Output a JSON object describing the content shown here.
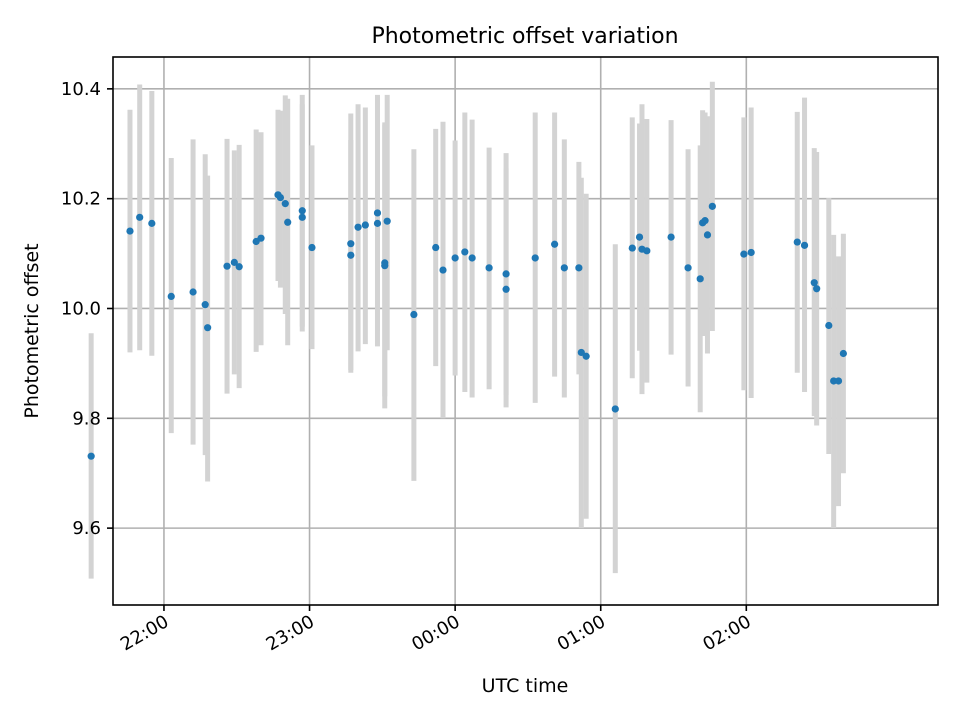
{
  "chart_data": {
    "type": "scatter",
    "title": "Photometric offset variation",
    "xlabel": "UTC time",
    "ylabel": "Photometric offset",
    "grid": true,
    "x_unit": "minutes",
    "xlim": [
      -141,
      199
    ],
    "ylim": [
      9.46,
      10.458
    ],
    "yticks": [
      9.6,
      9.8,
      10.0,
      10.2,
      10.4
    ],
    "ytick_labels": [
      "9.6",
      "9.8",
      "10.0",
      "10.2",
      "10.4"
    ],
    "xticks": [
      -120,
      -60,
      0,
      60,
      120
    ],
    "xtick_labels": [
      "22:00",
      "23:00",
      "00:00",
      "01:00",
      "02:00"
    ],
    "colors": {
      "point": "#1f77b4",
      "errorbar": "#d3d3d3",
      "grid": "#b0b0b0"
    },
    "series": [
      {
        "points": [
          {
            "x": -150,
            "y": 9.731,
            "lo": 9.508,
            "hi": 9.955
          },
          {
            "x": -134,
            "y": 10.141,
            "lo": 9.92,
            "hi": 10.362
          },
          {
            "x": -130,
            "y": 10.166,
            "lo": 9.924,
            "hi": 10.408
          },
          {
            "x": -125,
            "y": 10.155,
            "lo": 9.914,
            "hi": 10.396
          },
          {
            "x": -117,
            "y": 10.022,
            "lo": 9.773,
            "hi": 10.274
          },
          {
            "x": -108,
            "y": 10.03,
            "lo": 9.752,
            "hi": 10.308
          },
          {
            "x": -103,
            "y": 10.007,
            "lo": 9.733,
            "hi": 10.281
          },
          {
            "x": -102,
            "y": 9.965,
            "lo": 9.685,
            "hi": 10.242
          },
          {
            "x": -94,
            "y": 10.077,
            "lo": 9.845,
            "hi": 10.309
          },
          {
            "x": -91,
            "y": 10.084,
            "lo": 9.88,
            "hi": 10.288
          },
          {
            "x": -89,
            "y": 10.076,
            "lo": 9.855,
            "hi": 10.298
          },
          {
            "x": -82,
            "y": 10.122,
            "lo": 9.921,
            "hi": 10.326
          },
          {
            "x": -80,
            "y": 10.128,
            "lo": 9.933,
            "hi": 10.321
          },
          {
            "x": -73,
            "y": 10.207,
            "lo": 10.05,
            "hi": 10.362
          },
          {
            "x": -72,
            "y": 10.202,
            "lo": 10.038,
            "hi": 10.36
          },
          {
            "x": -70,
            "y": 10.191,
            "lo": 9.99,
            "hi": 10.388
          },
          {
            "x": -69,
            "y": 10.157,
            "lo": 9.933,
            "hi": 10.382
          },
          {
            "x": -63,
            "y": 10.178,
            "lo": 9.967,
            "hi": 10.389
          },
          {
            "x": -63,
            "y": 10.166,
            "lo": 9.958,
            "hi": 10.372
          },
          {
            "x": -59,
            "y": 10.111,
            "lo": 9.926,
            "hi": 10.297
          },
          {
            "x": -43,
            "y": 10.097,
            "lo": 9.888,
            "hi": 10.307
          },
          {
            "x": -43,
            "y": 10.118,
            "lo": 9.883,
            "hi": 10.355
          },
          {
            "x": -40,
            "y": 10.148,
            "lo": 9.922,
            "hi": 10.372
          },
          {
            "x": -37,
            "y": 10.152,
            "lo": 9.935,
            "hi": 10.366
          },
          {
            "x": -32,
            "y": 10.155,
            "lo": 9.931,
            "hi": 10.384
          },
          {
            "x": -32,
            "y": 10.174,
            "lo": 9.96,
            "hi": 10.389
          },
          {
            "x": -29,
            "y": 10.083,
            "lo": 9.84,
            "hi": 10.335
          },
          {
            "x": -29,
            "y": 10.078,
            "lo": 9.818,
            "hi": 10.339
          },
          {
            "x": -28,
            "y": 10.159,
            "lo": 9.924,
            "hi": 10.389
          },
          {
            "x": -17,
            "y": 9.989,
            "lo": 9.686,
            "hi": 10.29
          },
          {
            "x": -8,
            "y": 10.111,
            "lo": 9.895,
            "hi": 10.327
          },
          {
            "x": -5,
            "y": 10.07,
            "lo": 9.8,
            "hi": 10.34
          },
          {
            "x": 0,
            "y": 10.092,
            "lo": 9.878,
            "hi": 10.306
          },
          {
            "x": 4,
            "y": 10.103,
            "lo": 9.848,
            "hi": 10.357
          },
          {
            "x": 7,
            "y": 10.092,
            "lo": 9.838,
            "hi": 10.344
          },
          {
            "x": 14,
            "y": 10.074,
            "lo": 9.853,
            "hi": 10.293
          },
          {
            "x": 21,
            "y": 10.063,
            "lo": 9.843,
            "hi": 10.283
          },
          {
            "x": 21,
            "y": 10.035,
            "lo": 9.82,
            "hi": 10.255
          },
          {
            "x": 33,
            "y": 10.092,
            "lo": 9.828,
            "hi": 10.357
          },
          {
            "x": 41,
            "y": 10.117,
            "lo": 9.876,
            "hi": 10.357
          },
          {
            "x": 45,
            "y": 10.074,
            "lo": 9.838,
            "hi": 10.308
          },
          {
            "x": 51,
            "y": 10.074,
            "lo": 9.88,
            "hi": 10.267
          },
          {
            "x": 52,
            "y": 9.92,
            "lo": 9.6,
            "hi": 10.238
          },
          {
            "x": 54,
            "y": 9.913,
            "lo": 9.617,
            "hi": 10.209
          },
          {
            "x": 66,
            "y": 9.817,
            "lo": 9.518,
            "hi": 10.117
          },
          {
            "x": 73,
            "y": 10.11,
            "lo": 9.873,
            "hi": 10.348
          },
          {
            "x": 76,
            "y": 10.13,
            "lo": 9.923,
            "hi": 10.337
          },
          {
            "x": 77,
            "y": 10.108,
            "lo": 9.844,
            "hi": 10.372
          },
          {
            "x": 79,
            "y": 10.105,
            "lo": 9.865,
            "hi": 10.345
          },
          {
            "x": 89,
            "y": 10.13,
            "lo": 9.916,
            "hi": 10.343
          },
          {
            "x": 96,
            "y": 10.074,
            "lo": 9.858,
            "hi": 10.29
          },
          {
            "x": 101,
            "y": 10.054,
            "lo": 9.811,
            "hi": 10.297
          },
          {
            "x": 102,
            "y": 10.156,
            "lo": 9.95,
            "hi": 10.361
          },
          {
            "x": 103,
            "y": 10.16,
            "lo": 9.963,
            "hi": 10.357
          },
          {
            "x": 104,
            "y": 10.134,
            "lo": 9.918,
            "hi": 10.35
          },
          {
            "x": 106,
            "y": 10.186,
            "lo": 9.959,
            "hi": 10.413
          },
          {
            "x": 119,
            "y": 10.099,
            "lo": 9.851,
            "hi": 10.348
          },
          {
            "x": 122,
            "y": 10.102,
            "lo": 9.837,
            "hi": 10.366
          },
          {
            "x": 141,
            "y": 10.121,
            "lo": 9.883,
            "hi": 10.358
          },
          {
            "x": 144,
            "y": 10.115,
            "lo": 9.848,
            "hi": 10.384
          },
          {
            "x": 148,
            "y": 10.047,
            "lo": 9.804,
            "hi": 10.292
          },
          {
            "x": 149,
            "y": 10.036,
            "lo": 9.787,
            "hi": 10.285
          },
          {
            "x": 154,
            "y": 9.969,
            "lo": 9.735,
            "hi": 10.201
          },
          {
            "x": 156,
            "y": 9.868,
            "lo": 9.6,
            "hi": 10.134
          },
          {
            "x": 158,
            "y": 9.868,
            "lo": 9.64,
            "hi": 10.095
          },
          {
            "x": 160,
            "y": 9.918,
            "lo": 9.7,
            "hi": 10.136
          }
        ]
      }
    ]
  }
}
